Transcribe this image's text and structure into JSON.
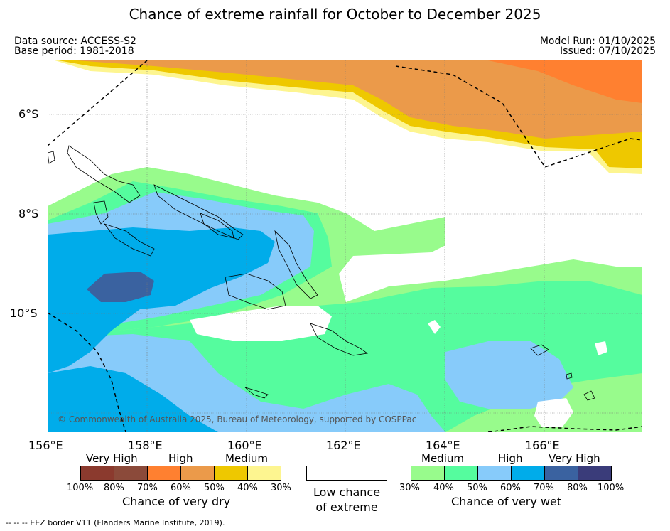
{
  "title": "Chance of extreme rainfall for October to December 2025",
  "meta": {
    "data_source": "Data source: ACCESS-S2",
    "base_period": "Base period: 1981-2018",
    "model_run": "Model Run: 01/10/2025",
    "issued": "Issued: 07/10/2025"
  },
  "axes": {
    "lat_labels": [
      "6°S",
      "8°S",
      "10°S"
    ],
    "lon_labels": [
      "156°E",
      "158°E",
      "160°E",
      "162°E",
      "164°E",
      "166°E"
    ]
  },
  "copyright": "© Commonwealth of Australia 2025, Bureau of Meteorology, supported by COSPPac",
  "legend": {
    "dry": {
      "categories": [
        "Very High",
        "High",
        "Medium"
      ],
      "ticks": [
        "100%",
        "80%",
        "70%",
        "60%",
        "50%",
        "40%",
        "30%"
      ],
      "label": "Chance of very dry",
      "colors": [
        "#8b3a2e",
        "#8b4a3a",
        "#ff8030",
        "#eb9a4a",
        "#eec800",
        "#fdf590"
      ]
    },
    "low": {
      "label_line1": "Low chance",
      "label_line2": "of extreme",
      "color": "#ffffff"
    },
    "wet": {
      "categories": [
        "Medium",
        "High",
        "Very High"
      ],
      "ticks": [
        "30%",
        "40%",
        "50%",
        "60%",
        "70%",
        "80%",
        "100%"
      ],
      "label": "Chance of very wet",
      "colors": [
        "#98fb8c",
        "#55fc9e",
        "#87cbfa",
        "#00acea",
        "#3a62a0",
        "#3a3c7a"
      ]
    }
  },
  "footer": "--  --  -- EEZ border V11 (Flanders Marine Institute, 2019)."
}
